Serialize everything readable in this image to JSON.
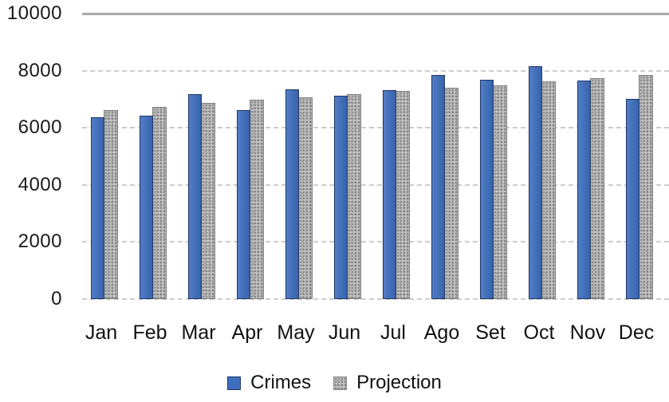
{
  "chart_data": {
    "type": "bar",
    "title": "",
    "xlabel": "",
    "ylabel": "",
    "categories": [
      "Jan",
      "Feb",
      "Mar",
      "Apr",
      "May",
      "Jun",
      "Jul",
      "Ago",
      "Set",
      "Oct",
      "Nov",
      "Dec"
    ],
    "series": [
      {
        "name": "Crimes",
        "color": "#3e6ec0",
        "border_color": "#1f3864",
        "values": [
          6370,
          6420,
          7170,
          6610,
          7350,
          7120,
          7330,
          7840,
          7670,
          8150,
          7660,
          7020
        ]
      },
      {
        "name": "Projection",
        "color": "#c6c6c6",
        "border_color": "#7f7f7f",
        "pattern": "stipple",
        "values": [
          6630,
          6740,
          6880,
          6970,
          7070,
          7180,
          7290,
          7390,
          7490,
          7620,
          7740,
          7840
        ]
      }
    ],
    "ylim": [
      0,
      10000
    ],
    "yticks": [
      0,
      2000,
      4000,
      6000,
      8000,
      10000
    ],
    "grid": true,
    "gridline_style": "dashed",
    "top_gridline_style": "solid",
    "legend_position": "bottom"
  }
}
